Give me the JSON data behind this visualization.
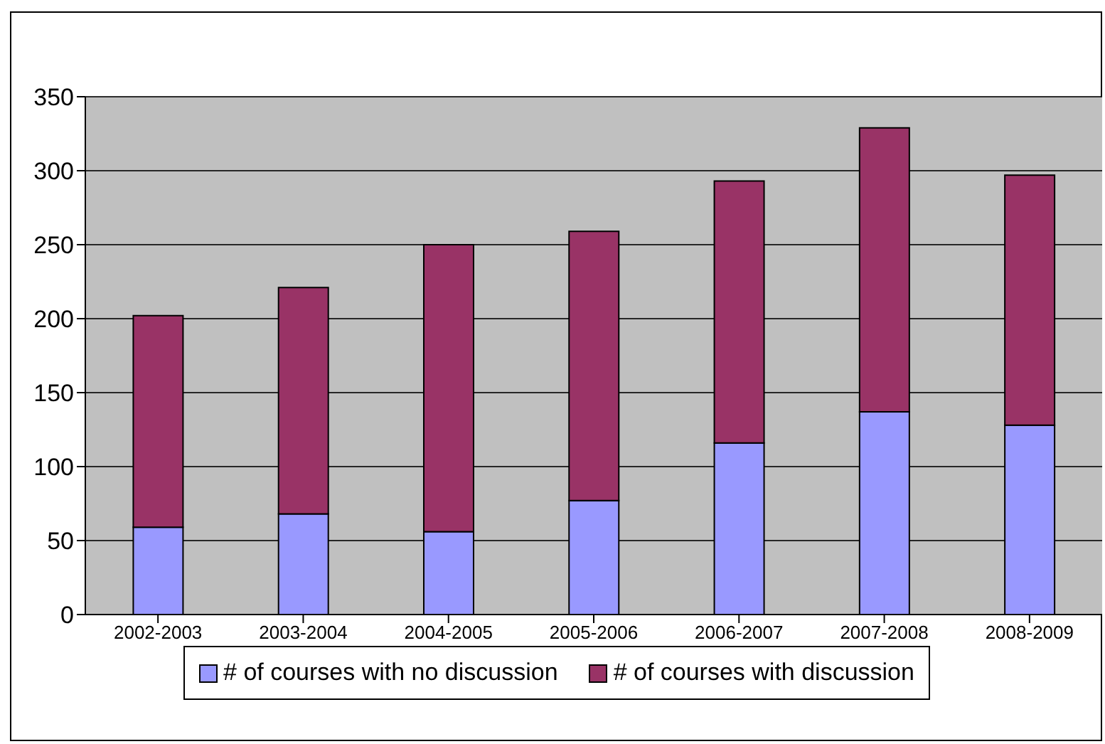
{
  "chart_data": {
    "type": "bar",
    "stacked": true,
    "categories": [
      "2002-2003",
      "2003-2004",
      "2004-2005",
      "2005-2006",
      "2006-2007",
      "2007-2008",
      "2008-2009"
    ],
    "series": [
      {
        "name": "# of courses with no discussion",
        "color": "#9999ff",
        "values": [
          59,
          68,
          56,
          77,
          116,
          137,
          128
        ]
      },
      {
        "name": "# of courses with discussion",
        "color": "#993366",
        "values": [
          143,
          153,
          194,
          182,
          177,
          192,
          169
        ]
      }
    ],
    "ylim": [
      0,
      350
    ],
    "yticks": [
      0,
      50,
      100,
      150,
      200,
      250,
      300,
      350
    ],
    "grid": "y",
    "legend": "bottom"
  }
}
